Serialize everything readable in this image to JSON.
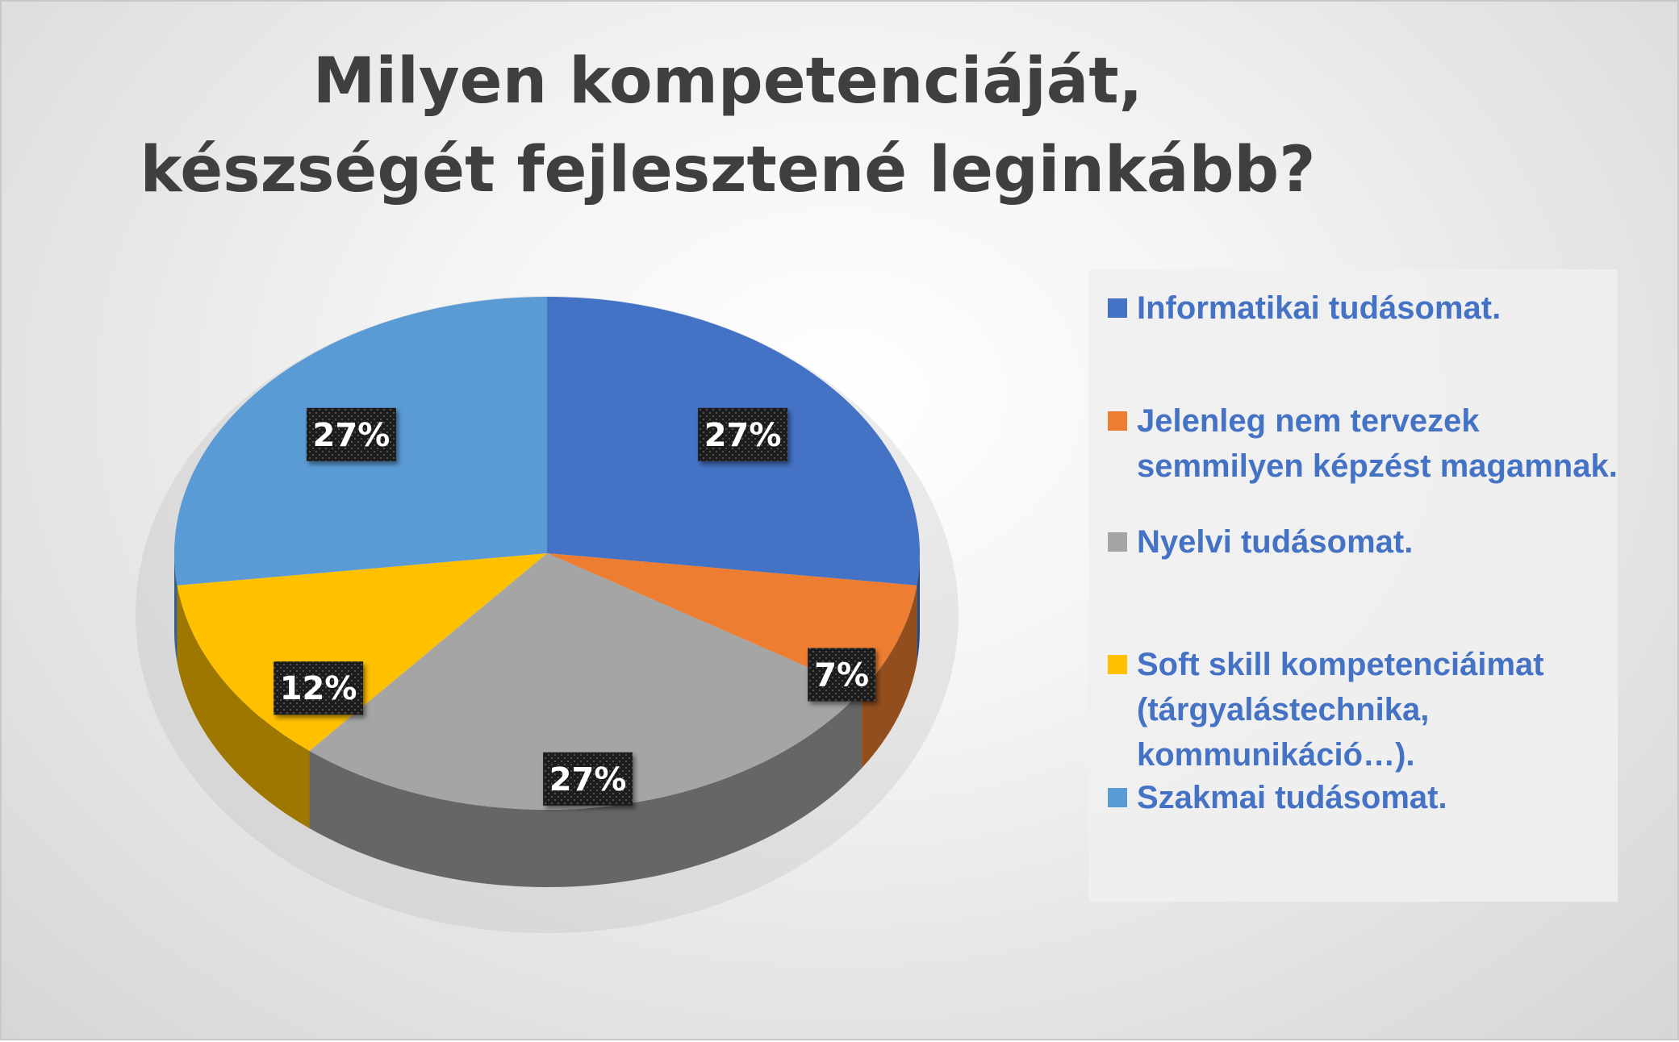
{
  "chart_data": {
    "type": "pie",
    "title": "Milyen kompetenciáját, készségét fejlesztené leginkább?",
    "categories": [
      "Informatikai tudásomat.",
      "Jelenleg nem tervezek semmilyen képzést magamnak.",
      "Nyelvi tudásomat.",
      "Soft skill kompetenciáimat (tárgyalástechnika, kommunikáció…).",
      "Szakmai tudásomat."
    ],
    "values": [
      27,
      7,
      27,
      12,
      27
    ],
    "data_labels": [
      "27%",
      "7%",
      "27%",
      "12%",
      "27%"
    ],
    "colors": [
      "#4472c4",
      "#ed7d31",
      "#a5a5a5",
      "#ffc000",
      "#5b9bd5"
    ],
    "legend_position": "right",
    "style": "3d"
  }
}
